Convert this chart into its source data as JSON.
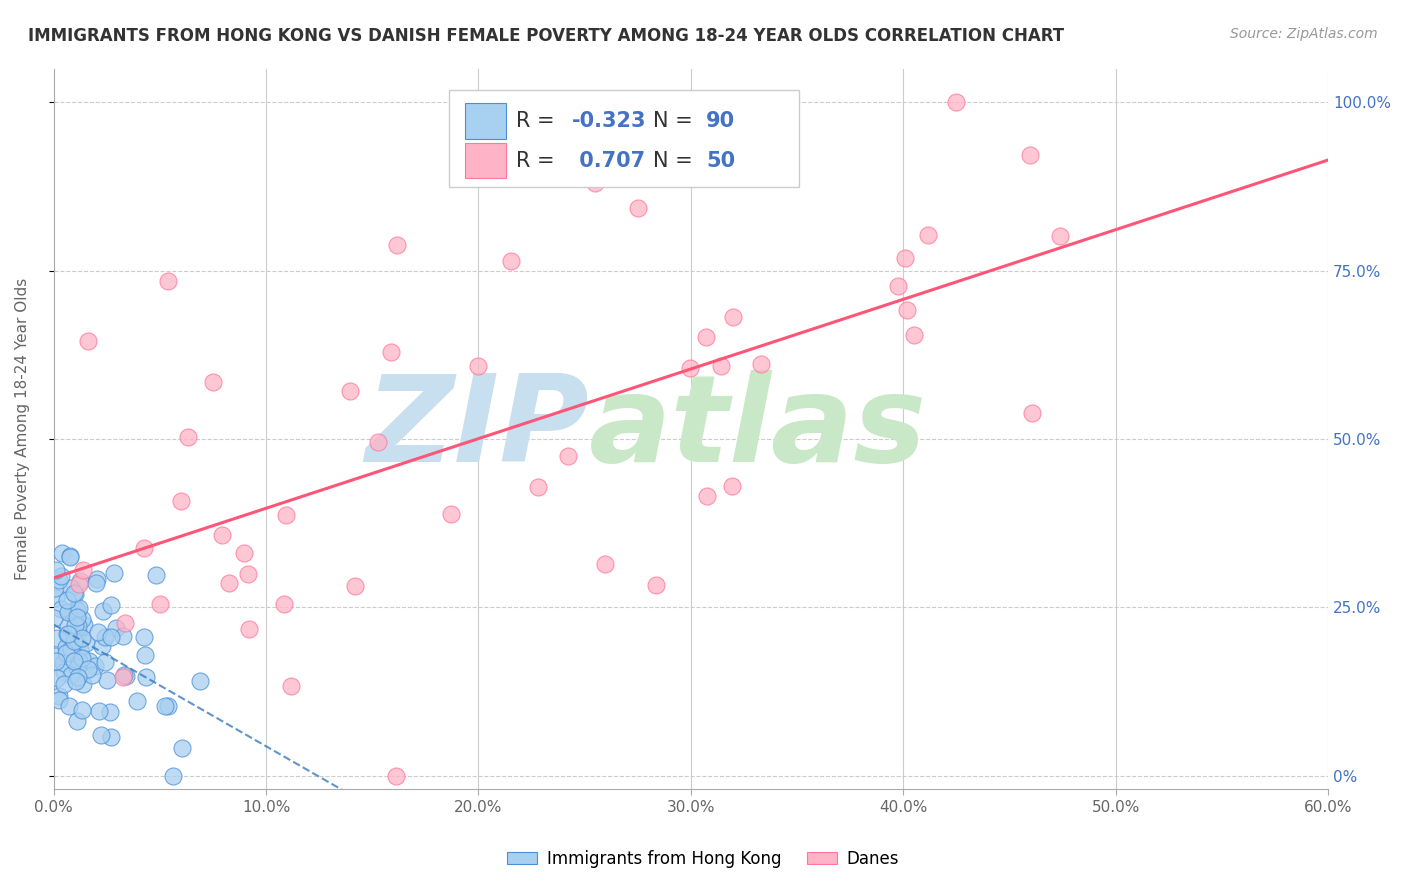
{
  "title": "IMMIGRANTS FROM HONG KONG VS DANISH FEMALE POVERTY AMONG 18-24 YEAR OLDS CORRELATION CHART",
  "source": "Source: ZipAtlas.com",
  "ylabel": "Female Poverty Among 18-24 Year Olds",
  "xlim": [
    0.0,
    0.6
  ],
  "ylim": [
    -0.02,
    1.05
  ],
  "ytick_vals": [
    0,
    0.25,
    0.5,
    0.75,
    1.0
  ],
  "xtick_vals": [
    0.0,
    0.1,
    0.2,
    0.3,
    0.4,
    0.5,
    0.6
  ],
  "blue_R": -0.323,
  "blue_N": 90,
  "pink_R": 0.707,
  "pink_N": 50,
  "blue_color": "#a8d0f0",
  "pink_color": "#ffb3c6",
  "blue_edge_color": "#4a90d9",
  "pink_edge_color": "#ff7799",
  "blue_line_color": "#3a7abf",
  "pink_line_color": "#ff5577",
  "watermark_zip": "ZIP",
  "watermark_atlas": "atlas",
  "watermark_color_zip": "#c8dff0",
  "watermark_color_atlas": "#c8e8c8",
  "legend_label_blue": "Immigrants from Hong Kong",
  "legend_label_pink": "Danes",
  "title_fontsize": 12,
  "source_fontsize": 10,
  "legend_fontsize": 15
}
